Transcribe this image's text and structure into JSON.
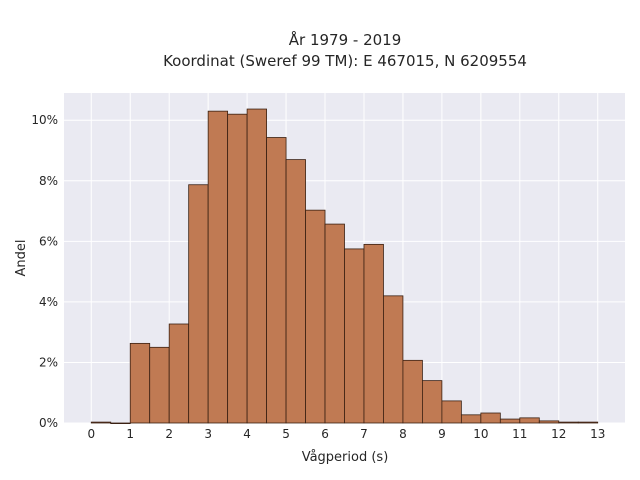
{
  "chart_data": {
    "type": "bar",
    "title": "År 1979 - 2019",
    "subtitle": "Koordinat (Sweref 99 TM): E 467015, N 6209554",
    "xlabel": "Vågperiod (s)",
    "ylabel": "Andel",
    "xlim": [
      -0.7,
      13.7
    ],
    "ylim": [
      0,
      10.9
    ],
    "x_ticks": [
      0,
      1,
      2,
      3,
      4,
      5,
      6,
      7,
      8,
      9,
      10,
      11,
      12,
      13
    ],
    "y_ticks": [
      0,
      2,
      4,
      6,
      8,
      10
    ],
    "y_tick_labels": [
      "0%",
      "2%",
      "4%",
      "6%",
      "8%",
      "10%"
    ],
    "bin_width": 0.5,
    "bins": [
      {
        "start": 0.0,
        "value": 0.03
      },
      {
        "start": 0.5,
        "value": 0.0
      },
      {
        "start": 1.0,
        "value": 2.63
      },
      {
        "start": 1.5,
        "value": 2.5
      },
      {
        "start": 2.0,
        "value": 3.27
      },
      {
        "start": 2.5,
        "value": 7.87
      },
      {
        "start": 3.0,
        "value": 10.3
      },
      {
        "start": 3.5,
        "value": 10.2
      },
      {
        "start": 4.0,
        "value": 10.37
      },
      {
        "start": 4.5,
        "value": 9.43
      },
      {
        "start": 5.0,
        "value": 8.7
      },
      {
        "start": 5.5,
        "value": 7.03
      },
      {
        "start": 6.0,
        "value": 6.57
      },
      {
        "start": 6.5,
        "value": 5.75
      },
      {
        "start": 7.0,
        "value": 5.9
      },
      {
        "start": 7.5,
        "value": 4.2
      },
      {
        "start": 8.0,
        "value": 2.07
      },
      {
        "start": 8.5,
        "value": 1.4
      },
      {
        "start": 9.0,
        "value": 0.73
      },
      {
        "start": 9.5,
        "value": 0.27
      },
      {
        "start": 10.0,
        "value": 0.33
      },
      {
        "start": 10.5,
        "value": 0.13
      },
      {
        "start": 11.0,
        "value": 0.17
      },
      {
        "start": 11.5,
        "value": 0.07
      },
      {
        "start": 12.0,
        "value": 0.03
      },
      {
        "start": 12.5,
        "value": 0.03
      }
    ],
    "grid": true,
    "colors": {
      "bar": "#c07a53",
      "bar_edge": "#3a2012",
      "plot_background": "#eaeaf2",
      "grid": "#ffffff"
    }
  }
}
